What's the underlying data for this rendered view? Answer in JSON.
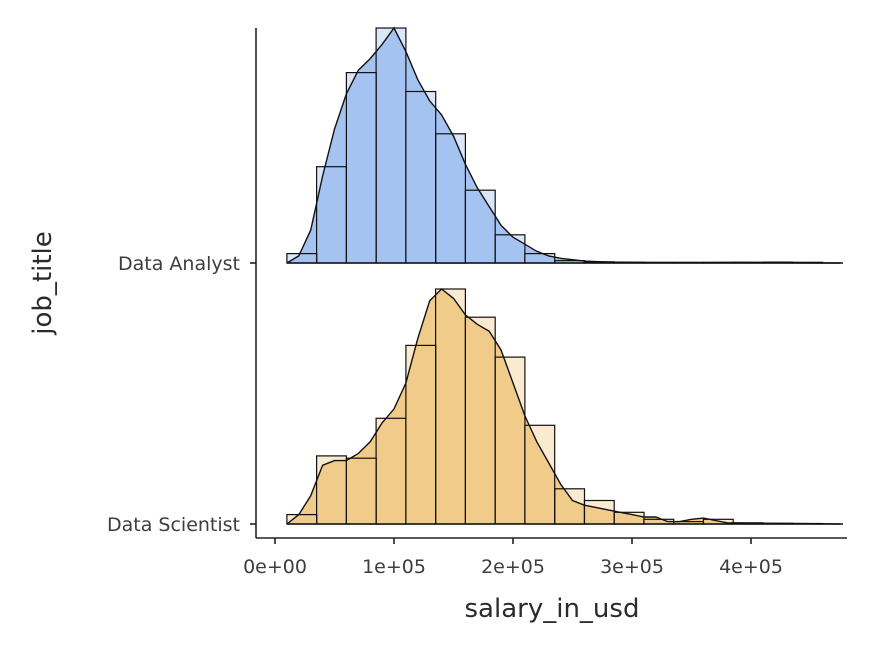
{
  "chart_data": {
    "type": "ridgeline",
    "xlabel": "salary_in_usd",
    "ylabel": "job_title",
    "xlim": [
      -5000,
      480000
    ],
    "x_ticks": [
      0,
      100000,
      200000,
      300000,
      400000
    ],
    "x_tick_labels": [
      "0e+00",
      "1e+05",
      "2e+05",
      "3e+05",
      "4e+05"
    ],
    "bin_width": 25000,
    "bin_edges": [
      10000,
      35000,
      60000,
      85000,
      110000,
      135000,
      160000,
      185000,
      210000,
      235000,
      260000,
      285000,
      310000,
      335000,
      360000,
      385000,
      410000,
      435000,
      460000
    ],
    "series": [
      {
        "name": "Data Analyst",
        "color": "#A4C3F0",
        "histogram_heights": [
          0.04,
          0.41,
          0.81,
          1.0,
          0.73,
          0.55,
          0.31,
          0.12,
          0.04,
          0.01,
          0.005,
          0.003,
          0.002,
          0.002,
          0.002,
          0.003,
          0.004,
          0.003
        ],
        "density": [
          [
            10000,
            0.0
          ],
          [
            20000,
            0.03
          ],
          [
            30000,
            0.14
          ],
          [
            40000,
            0.37
          ],
          [
            50000,
            0.57
          ],
          [
            60000,
            0.72
          ],
          [
            70000,
            0.82
          ],
          [
            80000,
            0.87
          ],
          [
            90000,
            0.93
          ],
          [
            100000,
            1.0
          ],
          [
            110000,
            0.9
          ],
          [
            120000,
            0.78
          ],
          [
            130000,
            0.69
          ],
          [
            140000,
            0.63
          ],
          [
            150000,
            0.54
          ],
          [
            160000,
            0.42
          ],
          [
            170000,
            0.32
          ],
          [
            180000,
            0.24
          ],
          [
            190000,
            0.16
          ],
          [
            200000,
            0.11
          ],
          [
            210000,
            0.08
          ],
          [
            220000,
            0.05
          ],
          [
            230000,
            0.03
          ],
          [
            240000,
            0.02
          ],
          [
            260000,
            0.008
          ],
          [
            280000,
            0.004
          ],
          [
            320000,
            0.002
          ],
          [
            360000,
            0.002
          ],
          [
            380000,
            0.003
          ],
          [
            400000,
            0.002
          ],
          [
            430000,
            0.001
          ],
          [
            475000,
            0.0
          ]
        ]
      },
      {
        "name": "Data Scientist",
        "color": "#F0CB8A",
        "histogram_heights": [
          0.04,
          0.29,
          0.28,
          0.45,
          0.76,
          1.0,
          0.88,
          0.71,
          0.42,
          0.15,
          0.1,
          0.05,
          0.02,
          0.01,
          0.02,
          0.005,
          0.003,
          0.002
        ],
        "density": [
          [
            10000,
            0.0
          ],
          [
            20000,
            0.04
          ],
          [
            30000,
            0.12
          ],
          [
            40000,
            0.25
          ],
          [
            50000,
            0.27
          ],
          [
            60000,
            0.27
          ],
          [
            70000,
            0.3
          ],
          [
            80000,
            0.35
          ],
          [
            90000,
            0.43
          ],
          [
            100000,
            0.49
          ],
          [
            110000,
            0.6
          ],
          [
            120000,
            0.79
          ],
          [
            130000,
            0.95
          ],
          [
            140000,
            1.0
          ],
          [
            150000,
            0.96
          ],
          [
            160000,
            0.89
          ],
          [
            170000,
            0.85
          ],
          [
            180000,
            0.82
          ],
          [
            190000,
            0.74
          ],
          [
            200000,
            0.6
          ],
          [
            210000,
            0.46
          ],
          [
            220000,
            0.35
          ],
          [
            230000,
            0.26
          ],
          [
            240000,
            0.17
          ],
          [
            250000,
            0.1
          ],
          [
            260000,
            0.08
          ],
          [
            270000,
            0.07
          ],
          [
            280000,
            0.06
          ],
          [
            290000,
            0.05
          ],
          [
            300000,
            0.04
          ],
          [
            310000,
            0.03
          ],
          [
            320000,
            0.03
          ],
          [
            330000,
            0.01
          ],
          [
            340000,
            0.01
          ],
          [
            350000,
            0.02
          ],
          [
            360000,
            0.025
          ],
          [
            370000,
            0.015
          ],
          [
            380000,
            0.005
          ],
          [
            400000,
            0.003
          ],
          [
            430000,
            0.002
          ],
          [
            475000,
            0.0
          ]
        ]
      }
    ],
    "grid": false,
    "legend": "none"
  }
}
